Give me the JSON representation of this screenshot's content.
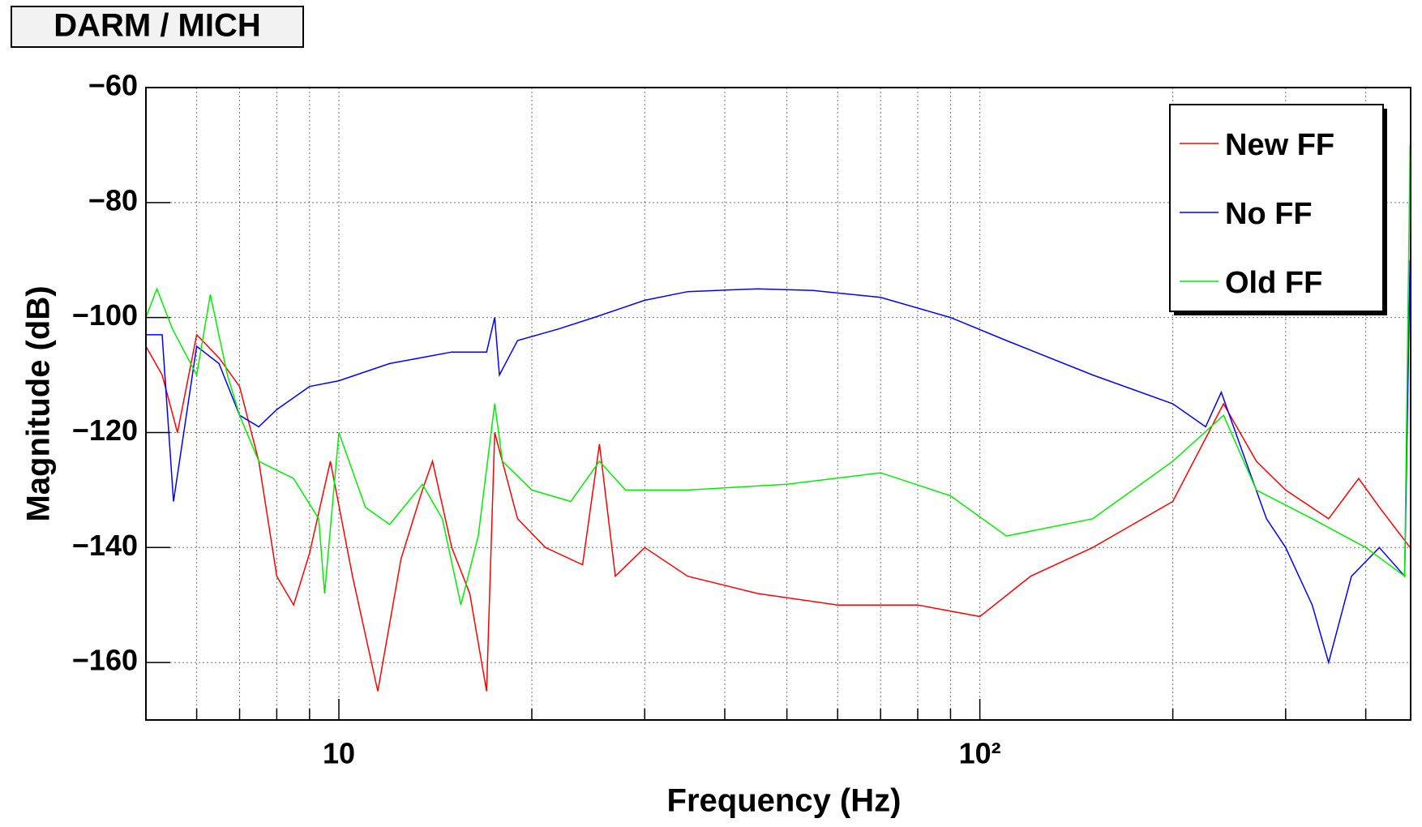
{
  "chart_data": {
    "type": "line",
    "title": "DARM / MICH",
    "xlabel": "Frequency (Hz)",
    "ylabel": "Magnitude (dB)",
    "xscale": "log",
    "grid": true,
    "legend": "top-right",
    "xlim": [
      5,
      470
    ],
    "ylim": [
      -170,
      -60
    ],
    "xticks": [
      10,
      {
        "value": 100,
        "label": "10²"
      }
    ],
    "xminorticks": [
      5,
      6,
      7,
      8,
      9,
      20,
      30,
      40,
      50,
      60,
      70,
      80,
      90,
      200,
      300,
      400
    ],
    "yticks": [
      {
        "value": -60,
        "label": "−60"
      },
      {
        "value": -80,
        "label": "−80"
      },
      {
        "value": -100,
        "label": "−100"
      },
      {
        "value": -120,
        "label": "−120"
      },
      {
        "value": -140,
        "label": "−140"
      },
      {
        "value": -160,
        "label": "−160"
      }
    ],
    "series": [
      {
        "name": "New FF",
        "color": "#ff0000",
        "x": [
          5,
          5.3,
          5.6,
          6,
          6.5,
          7,
          7.5,
          8,
          8.5,
          9,
          9.7,
          10.5,
          11.5,
          12.5,
          13.5,
          14,
          15,
          16,
          17,
          17.5,
          19,
          21,
          24,
          25.5,
          27,
          30,
          35,
          45,
          60,
          80,
          100,
          120,
          150,
          200,
          240,
          270,
          300,
          350,
          390,
          420,
          469
        ],
        "values": [
          -105,
          -110,
          -120,
          -103,
          -107,
          -112,
          -125,
          -145,
          -150,
          -141,
          -125,
          -145,
          -165,
          -142,
          -130,
          -125,
          -140,
          -148,
          -165,
          -120,
          -135,
          -140,
          -143,
          -122,
          -145,
          -140,
          -145,
          -148,
          -150,
          -150,
          -152,
          -145,
          -140,
          -132,
          -115,
          -125,
          -130,
          -135,
          -128,
          -133,
          -140
        ]
      },
      {
        "name": "No FF",
        "color": "#0000ff",
        "x": [
          5,
          5.3,
          5.52,
          6,
          6.5,
          7,
          7.5,
          8,
          9,
          10,
          12,
          15,
          17,
          17.5,
          17.8,
          19,
          22,
          25,
          30,
          35,
          45,
          55,
          70,
          90,
          110,
          150,
          200,
          225,
          238,
          260,
          280,
          300,
          330,
          350,
          380,
          420,
          460,
          469
        ],
        "values": [
          -103,
          -103,
          -132,
          -105,
          -108,
          -117,
          -119,
          -116,
          -112,
          -111,
          -108,
          -106,
          -106,
          -100,
          -110,
          -104,
          -102,
          -100,
          -97,
          -95.5,
          -95,
          -95.3,
          -96.5,
          -100,
          -104,
          -110,
          -115,
          -119,
          -113,
          -125,
          -135,
          -140,
          -150,
          -160,
          -145,
          -140,
          -145,
          -90
        ]
      },
      {
        "name": "Old FF",
        "color": "#00ee00",
        "x": [
          5,
          5.2,
          5.5,
          6,
          6.3,
          6.7,
          7,
          7.5,
          8.5,
          9.3,
          9.5,
          10,
          11,
          12,
          13.5,
          14.5,
          15.5,
          16.5,
          17.5,
          18,
          20,
          23,
          25.5,
          28,
          35,
          50,
          70,
          90,
          110,
          150,
          200,
          240,
          270,
          330,
          400,
          460,
          469
        ],
        "values": [
          -100,
          -95,
          -102,
          -110,
          -96,
          -110,
          -117,
          -125,
          -128,
          -135,
          -148,
          -120,
          -133,
          -136,
          -129,
          -135,
          -150,
          -138,
          -115,
          -125,
          -130,
          -132,
          -125,
          -130,
          -130,
          -129,
          -127,
          -131,
          -138,
          -135,
          -125,
          -117,
          -130,
          -135,
          -140,
          -145,
          -70
        ]
      }
    ]
  }
}
